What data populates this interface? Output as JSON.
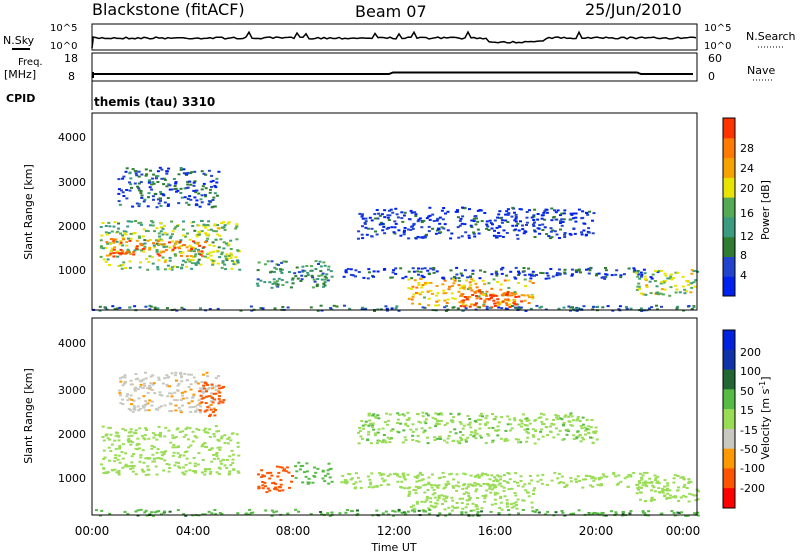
{
  "header": {
    "station": "Blackstone (fitACF)",
    "beam": "Beam 07",
    "date": "25/Jun/2010"
  },
  "left_labels": {
    "nsky": "N.Sky",
    "freq": "Freq.",
    "freq_unit": "[MHz]",
    "cpid": "CPID"
  },
  "right_labels": {
    "nsearch": "N.Search",
    "nave": "Nave"
  },
  "cpid_value": "themis (tau) 3310",
  "colors": {
    "power": [
      "#0022ee",
      "#2244cc",
      "#2e7d32",
      "#3a9b7e",
      "#55aa55",
      "#e8e300",
      "#f5a300",
      "#ff7a00",
      "#ff3300"
    ],
    "velocity": [
      "#ff0000",
      "#ff5500",
      "#ff9900",
      "#c8c8c0",
      "#99dd55",
      "#55bb44",
      "#226633",
      "#1133aa",
      "#0022dd"
    ],
    "axis": "#000000"
  },
  "chart_data": [
    {
      "type": "line",
      "panel": "noise",
      "left_ticks": [
        "10^5",
        "10^0"
      ],
      "right_ticks": [
        "10^5",
        "10^0"
      ],
      "x_range_hours": [
        0,
        24
      ]
    },
    {
      "type": "line",
      "panel": "frequency",
      "left_ticks": [
        "18",
        "8"
      ],
      "right_ticks": [
        "60",
        "0"
      ],
      "x_range_hours": [
        0,
        24
      ]
    },
    {
      "type": "heatmap",
      "panel": "power",
      "ylabel": "Slant Range [km]",
      "y_ticks": [
        "1000",
        "2000",
        "3000",
        "4000"
      ],
      "ylim": [
        180,
        4600
      ],
      "colorbar_label": "Power [dB]",
      "colorbar_ticks": [
        "4",
        "8",
        "12",
        "16",
        "20",
        "24",
        "28"
      ],
      "x_range_hours": [
        0,
        24
      ],
      "regions": [
        {
          "x0": 0.3,
          "x1": 5.8,
          "r0": 1100,
          "r1": 2200,
          "level": 0.5
        },
        {
          "x0": 0.5,
          "x1": 4.5,
          "r0": 1400,
          "r1": 1800,
          "level": 0.85
        },
        {
          "x0": 1.0,
          "x1": 5.0,
          "r0": 2500,
          "r1": 3400,
          "level": 0.2
        },
        {
          "x0": 6.5,
          "x1": 9.5,
          "r0": 700,
          "r1": 1300,
          "level": 0.35
        },
        {
          "x0": 9.8,
          "x1": 22.5,
          "r0": 900,
          "r1": 1150,
          "level": 0.15
        },
        {
          "x0": 12.5,
          "x1": 17.5,
          "r0": 300,
          "r1": 900,
          "level": 0.7
        },
        {
          "x0": 14.5,
          "x1": 17.0,
          "r0": 250,
          "r1": 650,
          "level": 0.95
        },
        {
          "x0": 10.5,
          "x1": 20.0,
          "r0": 1800,
          "r1": 2500,
          "level": 0.12
        },
        {
          "x0": 21.5,
          "x1": 24.0,
          "r0": 500,
          "r1": 1100,
          "level": 0.55
        },
        {
          "x0": 0.0,
          "x1": 24.0,
          "r0": 180,
          "r1": 300,
          "level": 0.25
        }
      ]
    },
    {
      "type": "heatmap",
      "panel": "velocity",
      "ylabel": "Slant Range [km]",
      "y_ticks": [
        "1000",
        "2000",
        "3000",
        "4000"
      ],
      "ylim": [
        180,
        4600
      ],
      "colorbar_label": "Velocity [m s^-1]",
      "colorbar_ticks": [
        "200",
        "100",
        "50",
        "15",
        "-15",
        "-50",
        "-100",
        "-200"
      ],
      "xlabel": "Time UT",
      "x_ticks": [
        "00:00",
        "04:00",
        "08:00",
        "12:00",
        "16:00",
        "20:00",
        "00:00"
      ],
      "x_range_hours": [
        0,
        24
      ],
      "regions": [
        {
          "x0": 0.3,
          "x1": 5.8,
          "r0": 1100,
          "r1": 2200,
          "value": 0
        },
        {
          "x0": 1.0,
          "x1": 5.0,
          "r0": 2500,
          "r1": 3400,
          "value": -40
        },
        {
          "x0": 4.2,
          "x1": 5.2,
          "r0": 2400,
          "r1": 3200,
          "value": -140
        },
        {
          "x0": 6.5,
          "x1": 8.0,
          "r0": 700,
          "r1": 1300,
          "value": -160
        },
        {
          "x0": 8.0,
          "x1": 9.5,
          "r0": 900,
          "r1": 1400,
          "value": 30
        },
        {
          "x0": 9.8,
          "x1": 22.5,
          "r0": 800,
          "r1": 1150,
          "value": 0
        },
        {
          "x0": 12.5,
          "x1": 17.5,
          "r0": 300,
          "r1": 900,
          "value": 0
        },
        {
          "x0": 10.5,
          "x1": 20.0,
          "r0": 1800,
          "r1": 2500,
          "value": 5
        },
        {
          "x0": 21.5,
          "x1": 24.0,
          "r0": 500,
          "r1": 1100,
          "value": 0
        },
        {
          "x0": 0.0,
          "x1": 24.0,
          "r0": 180,
          "r1": 320,
          "value": 40
        }
      ]
    }
  ]
}
